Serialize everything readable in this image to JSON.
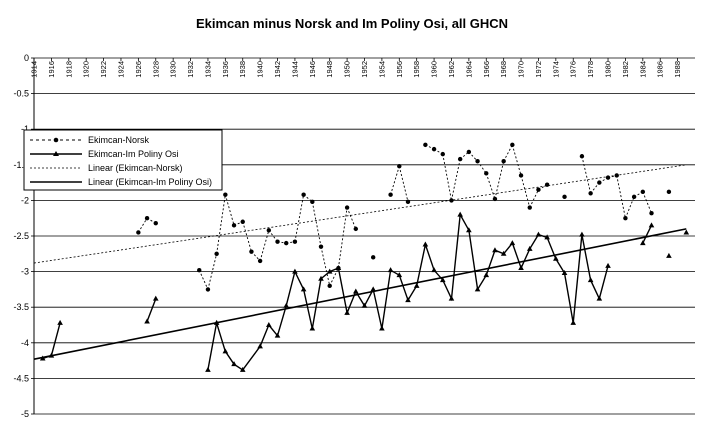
{
  "chart_data": {
    "type": "line",
    "title": "Ekimcan minus Norsk and Im Poliny Osi, all GHCN",
    "xlabel": "",
    "ylabel": "",
    "xlim": [
      1914,
      1990
    ],
    "ylim": [
      -5,
      0
    ],
    "y_ticks": [
      0,
      -0.5,
      -1,
      -1.5,
      -2,
      -2.5,
      -3,
      -3.5,
      -4,
      -4.5,
      -5
    ],
    "y_tick_labels": [
      "0",
      "-0.5",
      "-1",
      "-1.5",
      "-2",
      "-2.5",
      "-3",
      "-3.5",
      "-4",
      "-4.5",
      "-5"
    ],
    "x_tick_labels": [
      "1914",
      "1916",
      "1918",
      "1920",
      "1922",
      "1924",
      "1926",
      "1928",
      "1930",
      "1932",
      "1934",
      "1936",
      "1938",
      "1940",
      "1942",
      "1944",
      "1946",
      "1948",
      "1950",
      "1952",
      "1954",
      "1956",
      "1958",
      "1960",
      "1962",
      "1964",
      "1966",
      "1968",
      "1970",
      "1972",
      "1974",
      "1976",
      "1978",
      "1980",
      "1982",
      "1984",
      "1986",
      "1988"
    ],
    "grid": "horizontal",
    "legend_position": "left",
    "series": [
      {
        "name": "Ekimcan-Norsk",
        "style": "dashed-circle",
        "color": "#000000",
        "x": [
          1926,
          1927,
          1928,
          1933,
          1934,
          1935,
          1936,
          1937,
          1938,
          1939,
          1940,
          1941,
          1942,
          1943,
          1944,
          1945,
          1946,
          1947,
          1948,
          1949,
          1950,
          1951,
          1953,
          1955,
          1956,
          1957,
          1959,
          1960,
          1961,
          1962,
          1963,
          1964,
          1965,
          1966,
          1967,
          1968,
          1969,
          1970,
          1971,
          1972,
          1973,
          1975,
          1977,
          1978,
          1979,
          1980,
          1981,
          1982,
          1983,
          1984,
          1985,
          1987
        ],
        "y": [
          -2.45,
          -2.25,
          -2.32,
          -2.98,
          -3.25,
          -2.75,
          -1.92,
          -2.35,
          -2.3,
          -2.72,
          -2.85,
          -2.42,
          -2.58,
          -2.6,
          -2.58,
          -1.92,
          -2.02,
          -2.65,
          -3.2,
          -2.95,
          -2.1,
          -2.4,
          -2.8,
          -1.92,
          -1.52,
          -2.02,
          -1.22,
          -1.28,
          -1.35,
          -2.0,
          -1.42,
          -1.32,
          -1.45,
          -1.62,
          -1.98,
          -1.45,
          -1.22,
          -1.65,
          -2.1,
          -1.85,
          -1.78,
          -1.95,
          -1.38,
          -1.9,
          -1.75,
          -1.68,
          -1.65,
          -2.25,
          -1.95,
          -1.88,
          -2.18,
          -1.88
        ]
      },
      {
        "name": "Ekimcan-Im Poliny Osi",
        "style": "solid-triangle",
        "color": "#000000",
        "segments": [
          {
            "x": [
              1915,
              1916,
              1917
            ],
            "y": [
              -4.22,
              -4.18,
              -3.72
            ]
          },
          {
            "x": [
              1927,
              1928
            ],
            "y": [
              -3.7,
              -3.38
            ]
          },
          {
            "x": [
              1934,
              1935,
              1936,
              1937,
              1938,
              1940,
              1941,
              1942,
              1943,
              1944,
              1945,
              1946,
              1947,
              1948,
              1949,
              1950,
              1951,
              1952,
              1953,
              1954,
              1955,
              1956,
              1957,
              1958,
              1959,
              1960,
              1961,
              1962,
              1963,
              1964,
              1965,
              1966,
              1967,
              1968,
              1969,
              1970,
              1971,
              1972,
              1973,
              1974,
              1975,
              1976,
              1977,
              1978,
              1979,
              1980,
              1981
            ],
            "y": [
              -4.38,
              -3.72,
              -4.12,
              -4.3,
              -4.38,
              -4.05,
              -3.75,
              -3.9,
              -3.48,
              -3.0,
              -3.25,
              -3.8,
              -3.1,
              -3.0,
              -2.95,
              -3.58,
              -3.28,
              -3.48,
              -3.25,
              -3.8,
              -2.98,
              -3.05,
              -3.4,
              -3.2,
              -2.62,
              -2.98,
              -3.12,
              -3.38,
              -2.2,
              -2.42,
              -3.25,
              -3.05,
              -2.7,
              -2.75,
              -2.6,
              -2.95,
              -2.68,
              -2.48,
              -2.52,
              -2.82,
              -3.02,
              -3.72,
              -2.48,
              -3.12,
              -3.38,
              -2.92,
              null
            ]
          },
          {
            "x": [
              1984,
              1985
            ],
            "y": [
              -2.6,
              -2.35
            ]
          },
          {
            "x": [
              1987
            ],
            "y": [
              -2.78
            ]
          },
          {
            "x": [
              1989
            ],
            "y": [
              -2.45
            ]
          }
        ]
      },
      {
        "name": "Linear (Ekimcan-Norsk)",
        "style": "dotted-trend",
        "color": "#000000",
        "x": [
          1914,
          1989
        ],
        "y": [
          -2.88,
          -1.5
        ]
      },
      {
        "name": "Linear (Ekimcan-Im Poliny Osi)",
        "style": "solid-trend",
        "color": "#000000",
        "x": [
          1914,
          1989
        ],
        "y": [
          -4.23,
          -2.4
        ]
      }
    ]
  }
}
